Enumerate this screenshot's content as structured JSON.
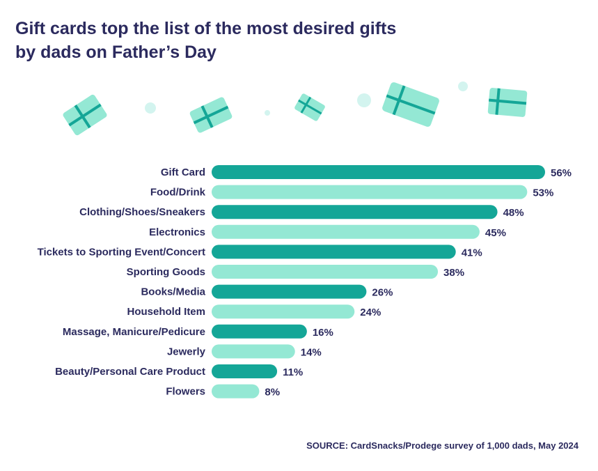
{
  "title": "Gift cards top the list of  the most desired gifts\nby dads on Father’s Day",
  "source": "SOURCE: CardSnacks/Prodege survey of 1,000 dads, May 2024",
  "colors": {
    "dark_bar": "#14a697",
    "light_bar": "#94e8d4",
    "text": "#2b2a5e",
    "ribbon": "#14a697",
    "dot": "#d3f4ef"
  },
  "chart_data": {
    "type": "bar",
    "orientation": "horizontal",
    "categories": [
      "Gift Card",
      "Food/Drink",
      "Clothing/Shoes/Sneakers",
      "Electronics",
      "Tickets to Sporting Event/Concert",
      "Sporting Goods",
      "Books/Media",
      "Household Item",
      "Massage, Manicure/Pedicure",
      "Jewerly",
      "Beauty/Personal Care Product",
      "Flowers"
    ],
    "values": [
      56,
      53,
      48,
      45,
      41,
      38,
      26,
      24,
      16,
      14,
      11,
      8
    ],
    "value_labels": [
      "56%",
      "53%",
      "48%",
      "45%",
      "41%",
      "38%",
      "26%",
      "24%",
      "16%",
      "14%",
      "11%",
      "8%"
    ],
    "xlim": [
      0,
      56
    ],
    "grid": false,
    "legend": "none"
  }
}
